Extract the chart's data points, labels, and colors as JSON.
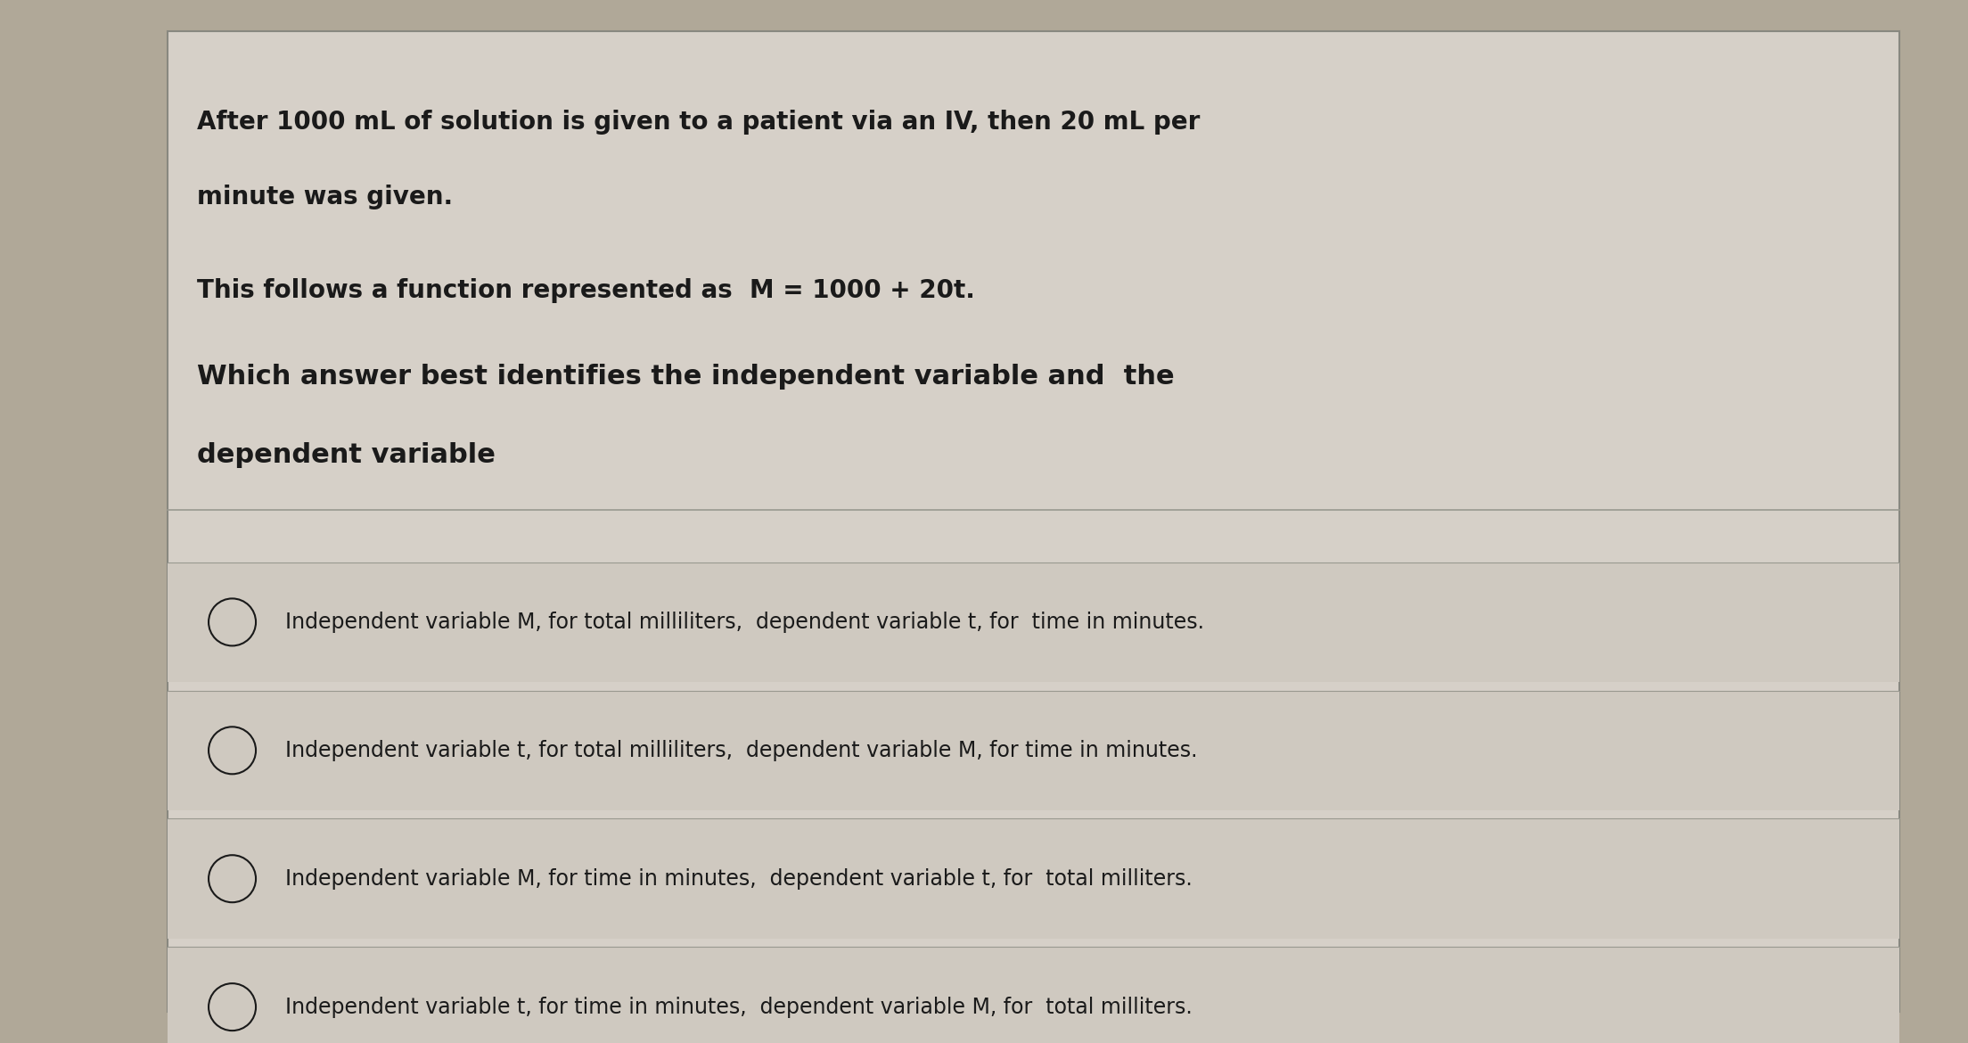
{
  "background_color": "#b0a898",
  "card_color": "#d6d0c8",
  "card_border_color": "#888880",
  "title_lines": [
    "After 1000 mL of solution is given to a patient via an IV, then 20 mL per",
    "minute was given."
  ],
  "subtitle_line": "This follows a function represented as  M = 1000 + 20t.",
  "question_lines": [
    "Which answer best identifies the independent variable and  the",
    "dependent variable"
  ],
  "options": [
    "Independent variable M, for total milliliters,  dependent variable t, for  time in minutes.",
    "Independent variable t, for total milliliters,  dependent variable M, for time in minutes.",
    "Independent variable M, for time in minutes,  dependent variable t, for  total milliters.",
    "Independent variable t, for time in minutes,  dependent variable M, for  total milliters."
  ],
  "text_color": "#1a1a1a",
  "divider_color": "#999990",
  "option_bg_color": "#cfc9c0",
  "title_fontsize": 20,
  "subtitle_fontsize": 20,
  "question_fontsize": 22,
  "option_fontsize": 17
}
